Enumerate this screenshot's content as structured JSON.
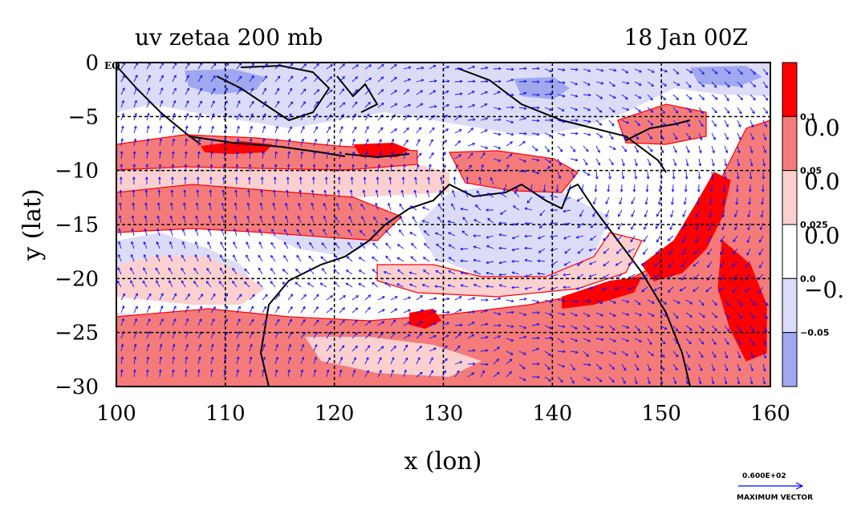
{
  "chart_data": {
    "type": "heatmap",
    "title_left": "uv zetaa 200 mb",
    "title_right": "18 Jan 00Z",
    "xlabel": "x (lon)",
    "ylabel": "y (lat)",
    "xlim": [
      100,
      160
    ],
    "ylim": [
      -30,
      0
    ],
    "x_ticks": [
      "100",
      "110",
      "120",
      "130",
      "140",
      "150",
      "160"
    ],
    "y_ticks": [
      "0",
      "−5",
      "−10",
      "−15",
      "−20",
      "−25",
      "−30"
    ],
    "equator_label": "EQ",
    "grid": true,
    "colorbar": {
      "levels": [
        "0.1",
        "0.05",
        "0.025",
        "0.0",
        "−0.05"
      ],
      "right_labels": [
        "0.0",
        "0.0",
        "0.0",
        "−0."
      ],
      "colors": [
        "#ff0000",
        "#f57b7b",
        "#fdd0d0",
        "#ffffff",
        "#dcdcf8",
        "#a0a8f0"
      ]
    },
    "vector_legend": {
      "value": "0.600E+02",
      "label": "MAXIMUM VECTOR",
      "color": "#0000ff"
    },
    "coastline_color": "#000000",
    "contour_color": "#ff0000"
  }
}
